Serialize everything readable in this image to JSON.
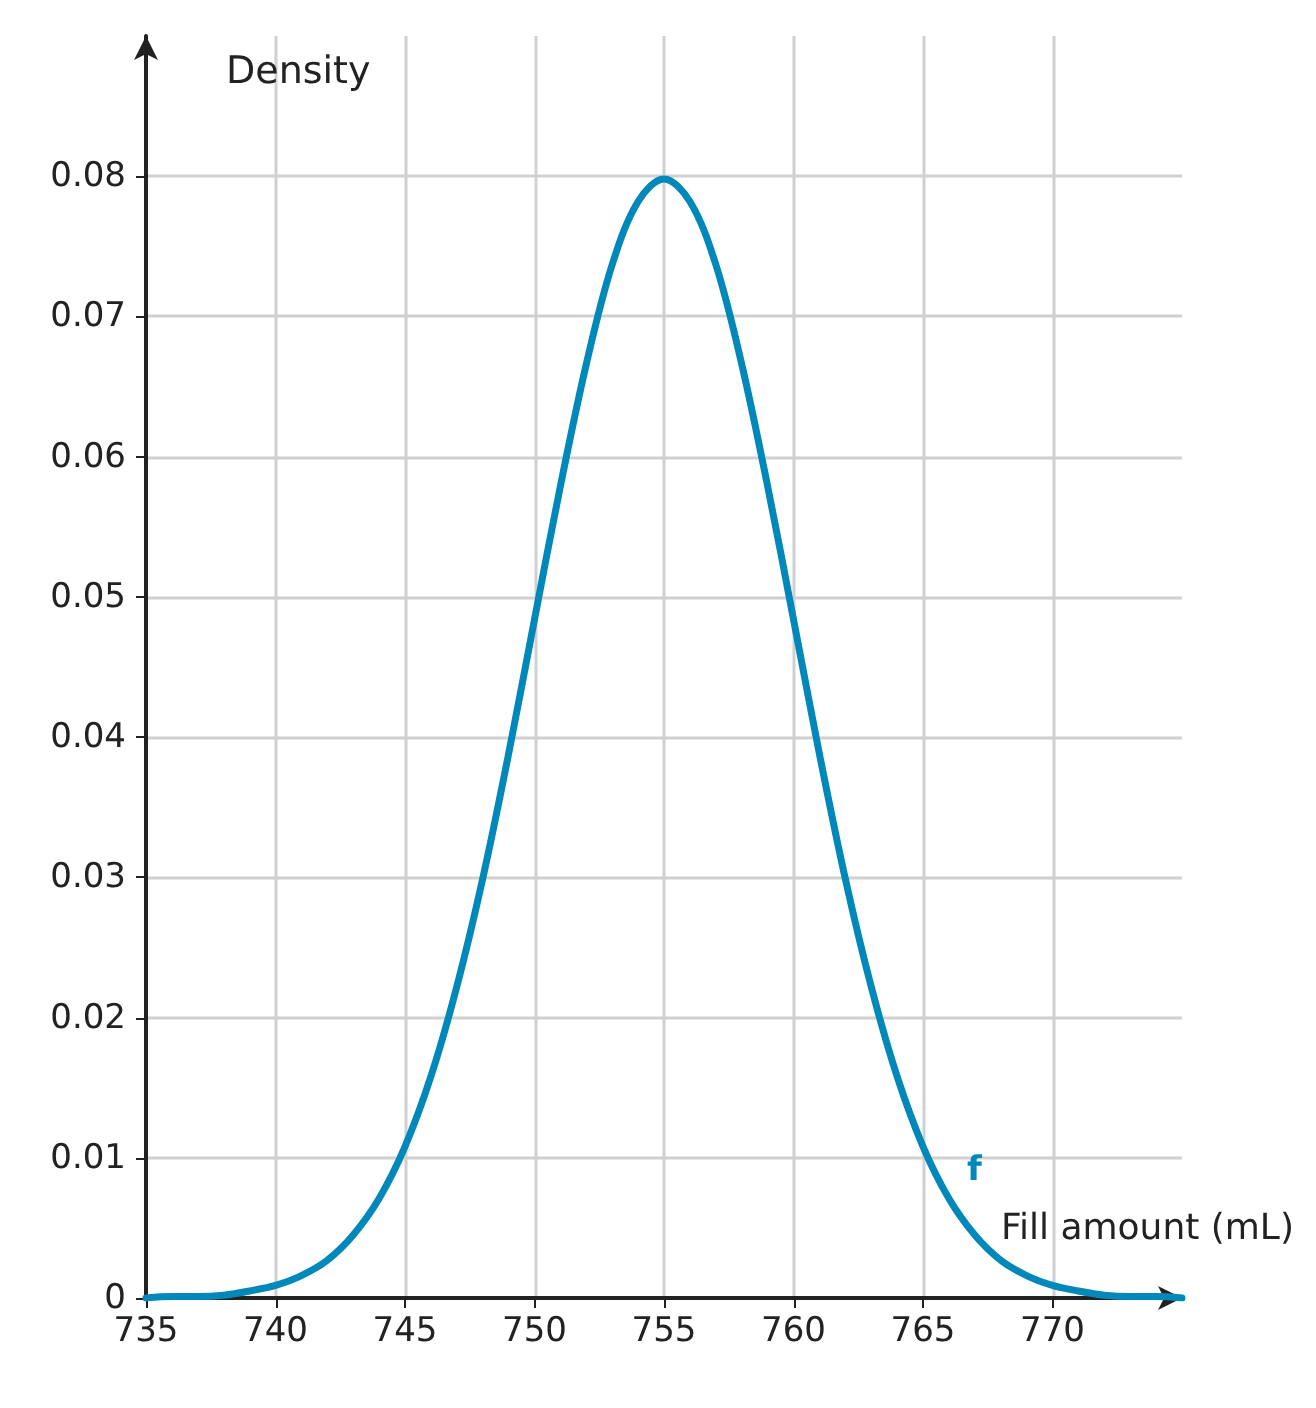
{
  "chart_data": {
    "type": "line",
    "xlabel": "Fill amount (mL)",
    "ylabel": "Density",
    "x": [
      735,
      736,
      737,
      738,
      739,
      740,
      741,
      742,
      743,
      744,
      745,
      746,
      747,
      748,
      749,
      750,
      751,
      752,
      753,
      754,
      755,
      756,
      757,
      758,
      759,
      760,
      761,
      762,
      763,
      764,
      765,
      766,
      767,
      768,
      769,
      770,
      771,
      772,
      773,
      774,
      775
    ],
    "series": [
      {
        "name": "f",
        "color": "#0088bb",
        "values": [
          0.0,
          0.0001,
          0.0001,
          0.0002,
          0.0005,
          0.0009,
          0.0016,
          0.0027,
          0.0045,
          0.0071,
          0.0108,
          0.0158,
          0.0222,
          0.0299,
          0.0388,
          0.0484,
          0.0579,
          0.0666,
          0.0737,
          0.0782,
          0.0798,
          0.0782,
          0.0737,
          0.0666,
          0.0579,
          0.0484,
          0.0388,
          0.0299,
          0.0222,
          0.0158,
          0.0108,
          0.0071,
          0.0045,
          0.0027,
          0.0016,
          0.0009,
          0.0005,
          0.0002,
          0.0001,
          0.0001,
          0.0
        ]
      }
    ],
    "xlim": [
      735,
      775
    ],
    "xticks": [
      735,
      740,
      745,
      750,
      755,
      760,
      765,
      770
    ],
    "ylim": [
      0,
      0.09
    ],
    "yticks": [
      0,
      0.01,
      0.02,
      0.03,
      0.04,
      0.05,
      0.06,
      0.07,
      0.08
    ],
    "grid": true,
    "marker": "none",
    "line_style": "solid",
    "legend": false
  }
}
